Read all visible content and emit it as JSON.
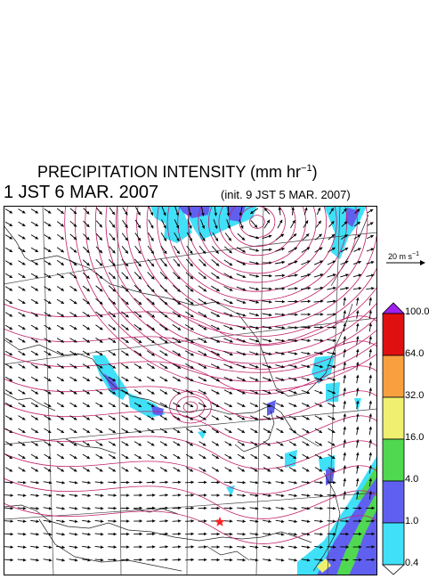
{
  "header": {
    "title": "PRECIPITATION INTENSITY (mm hr",
    "title_exp": "−1",
    "title_close": ")",
    "subtitle": "1 JST 6 MAR. 2007",
    "init": "(init. 9 JST 5 MAR. 2007)"
  },
  "reference_vector": {
    "label": "20 m s",
    "label_exp": "−1"
  },
  "colorbar": {
    "levels": [
      "100.0",
      "64.0",
      "32.0",
      "16.0",
      "4.0",
      "1.0",
      "0.4"
    ],
    "colors": [
      "#a020f0",
      "#e01010",
      "#f8a040",
      "#f0f070",
      "#50d850",
      "#6060f0",
      "#40e0f8",
      "#ffffff"
    ]
  },
  "map": {
    "marker_color": "#ff2020",
    "contour_color": "#c0206a"
  }
}
